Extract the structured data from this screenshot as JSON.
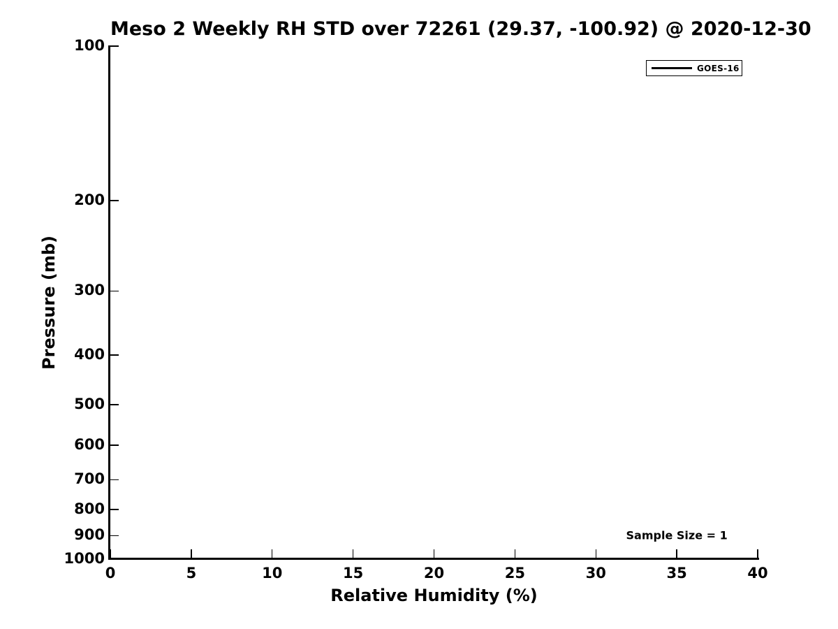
{
  "chart_data": {
    "type": "line",
    "title": "Meso 2 Weekly RH STD over 72261 (29.37, -100.92) @ 2020-12-30",
    "xlabel": "Relative Humidity (%)",
    "ylabel": "Pressure (mb)",
    "xlim": [
      0,
      40
    ],
    "x_ticks": [
      0,
      5,
      10,
      15,
      20,
      25,
      30,
      35,
      40
    ],
    "ylim": [
      1000,
      100
    ],
    "y_scale": "log",
    "y_axis_inverted": true,
    "y_ticks": [
      100,
      200,
      300,
      400,
      500,
      600,
      700,
      800,
      900,
      1000
    ],
    "grid": false,
    "tick_direction": "in",
    "legend_position": "upper right",
    "series": [
      {
        "name": "GOES-16",
        "color": "#000000",
        "x": [],
        "y": []
      }
    ],
    "annotations": [
      {
        "text": "Sample Size = 1",
        "x": 35,
        "y": 900
      }
    ],
    "colors": {
      "text": "#000000",
      "axis": "#000000",
      "background": "#ffffff"
    }
  }
}
